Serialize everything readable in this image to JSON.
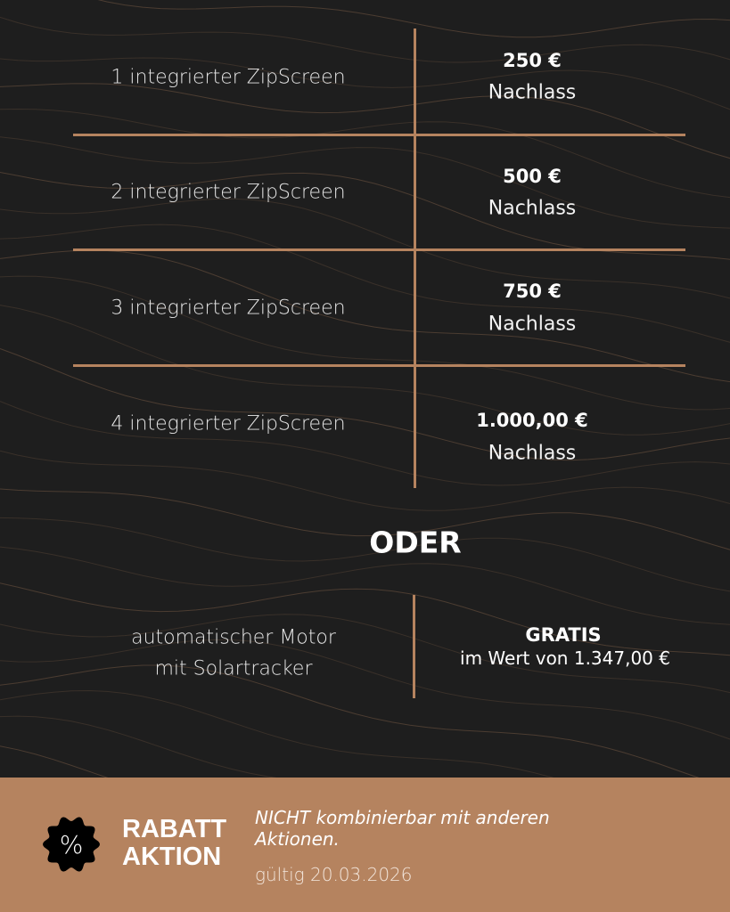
{
  "colors": {
    "background": "#1e1e1e",
    "accent": "#b5835f",
    "text": "#ffffff"
  },
  "rows": [
    {
      "label": "1 integrierter ZipScreen",
      "amount": "250 €",
      "suffix": "Nachlass"
    },
    {
      "label": "2 integrierter ZipScreen",
      "amount": "500 €",
      "suffix": "Nachlass"
    },
    {
      "label": "3 integrierter ZipScreen",
      "amount": "750 €",
      "suffix": "Nachlass"
    },
    {
      "label": "4 integrierter ZipScreen",
      "amount": "1.000,00 €",
      "suffix": "Nachlass"
    }
  ],
  "separator": "ODER",
  "alternative": {
    "line1": "automatischer Motor",
    "line2": "mit Solartracker",
    "headline": "GRATIS",
    "value": "im Wert von 1.347,00 €"
  },
  "footer": {
    "badge_icon": "percent-badge-icon",
    "badge_symbol": "%",
    "title_line1": "RABATT",
    "title_line2": "AKTION",
    "note": "NICHT kombinierbar mit anderen Aktionen.",
    "validity": "gültig 20.03.2026"
  }
}
